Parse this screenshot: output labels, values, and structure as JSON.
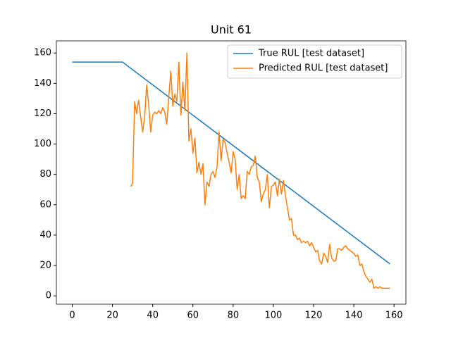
{
  "chart_data": {
    "type": "line",
    "title": "Unit 61",
    "xlim": [
      -7.9,
      165.9
    ],
    "ylim": [
      -5.5,
      168
    ],
    "xticks": [
      0,
      20,
      40,
      60,
      80,
      100,
      120,
      140,
      160
    ],
    "yticks": [
      0,
      20,
      40,
      60,
      80,
      100,
      120,
      140,
      160
    ],
    "legend": "upper right",
    "series": [
      {
        "name": "True RUL [test dataset]",
        "color": "#1f77b4",
        "x": [
          0,
          25,
          158
        ],
        "values": [
          154,
          154,
          21
        ]
      },
      {
        "name": "Predicted RUL [test dataset]",
        "color": "#ff7f0e",
        "x": [
          29,
          30,
          31,
          32,
          33,
          34,
          35,
          36,
          37,
          38,
          39,
          40,
          41,
          42,
          43,
          44,
          45,
          46,
          47,
          48,
          49,
          50,
          51,
          52,
          53,
          54,
          55,
          56,
          57,
          58,
          59,
          60,
          61,
          62,
          63,
          64,
          65,
          66,
          67,
          68,
          69,
          70,
          71,
          72,
          73,
          74,
          75,
          76,
          77,
          78,
          79,
          80,
          81,
          82,
          83,
          84,
          85,
          86,
          87,
          88,
          89,
          90,
          91,
          92,
          93,
          94,
          95,
          96,
          97,
          98,
          99,
          100,
          101,
          102,
          103,
          104,
          105,
          106,
          107,
          108,
          109,
          110,
          111,
          112,
          113,
          114,
          115,
          116,
          117,
          118,
          119,
          120,
          121,
          122,
          123,
          124,
          125,
          126,
          127,
          128,
          129,
          130,
          131,
          132,
          133,
          134,
          135,
          136,
          137,
          138,
          139,
          140,
          141,
          142,
          143,
          144,
          145,
          146,
          147,
          148,
          149,
          150,
          151,
          152,
          153,
          154,
          155,
          156,
          157,
          158
        ],
        "values": [
          72,
          74,
          128,
          120,
          129,
          118,
          108,
          118,
          139,
          126,
          108,
          119,
          121,
          120,
          122,
          120,
          124,
          121,
          113,
          131,
          148,
          125,
          133,
          128,
          154,
          119,
          141,
          122,
          160,
          102,
          110,
          94,
          104,
          81,
          88,
          80,
          87,
          60,
          75,
          72,
          80,
          82,
          78,
          85,
          108,
          89,
          103,
          101,
          94,
          88,
          81,
          95,
          90,
          70,
          80,
          64,
          66,
          64,
          82,
          80,
          85,
          86,
          92,
          78,
          75,
          62,
          67,
          70,
          80,
          58,
          72,
          73,
          75,
          66,
          77,
          67,
          76,
          66,
          58,
          50,
          51,
          40,
          40,
          37,
          38,
          35,
          36,
          35,
          36,
          33,
          35,
          32,
          29,
          30,
          23,
          21,
          28,
          26,
          22,
          34,
          25,
          23,
          23,
          31,
          31,
          30,
          32,
          33,
          31,
          30,
          29,
          28,
          26,
          27,
          20,
          21,
          16,
          13,
          11,
          9,
          11,
          5,
          6,
          5,
          6,
          5,
          5,
          5,
          5,
          5
        ]
      }
    ]
  }
}
